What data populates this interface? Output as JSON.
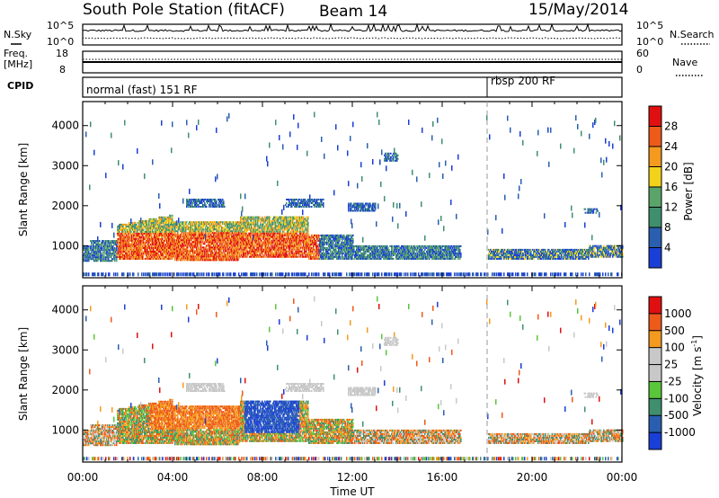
{
  "header": {
    "station": "South Pole Station (fitACF)",
    "beam": "Beam 14",
    "date": "15/May/2014"
  },
  "panels": {
    "nsky": {
      "label": "N.Sky",
      "ticks": [
        "10^5",
        "10^0"
      ]
    },
    "nsearch": {
      "label": "N.Search",
      "ticks": [
        "10^5",
        "10^0"
      ]
    },
    "freq": {
      "label_top": "Freq.",
      "label_bottom": "[MHz]",
      "ticks": [
        "18",
        "8"
      ]
    },
    "nave": {
      "label": "Nave",
      "ticks": [
        "60",
        "0"
      ]
    },
    "cpid": {
      "label": "CPID",
      "segments": [
        "normal (fast) 151 RF",
        "rbsp 200 RF"
      ]
    }
  },
  "colors": {
    "power": [
      "#1a3fd6",
      "#2a5fb0",
      "#3f8f6f",
      "#5aa46a",
      "#f2d21a",
      "#f49a1e",
      "#ee5a1a",
      "#e01010"
    ],
    "velocity": [
      "#e01010",
      "#ee5a1a",
      "#f49a1e",
      "#c8c8c8",
      "#c8c8c8",
      "#5ac63a",
      "#3f8f6f",
      "#2a5fb0",
      "#1a3fd6"
    ],
    "scatter_gray": "#c8c8c8"
  },
  "chart_data": [
    {
      "type": "heatmap",
      "title": "Power",
      "ylabel": "Slant Range [km]",
      "xlabel": "Time UT",
      "x_ticks": [
        "00:00",
        "04:00",
        "08:00",
        "12:00",
        "16:00",
        "20:00",
        "00:00"
      ],
      "y_ticks": [
        1000,
        2000,
        3000,
        4000
      ],
      "ylim": [
        200,
        4600
      ],
      "xlim_hours": [
        0,
        24
      ],
      "colorbar": {
        "label": "Power [dB]",
        "ticks": [
          4,
          8,
          12,
          16,
          20,
          24,
          28
        ]
      }
    },
    {
      "type": "heatmap",
      "title": "Velocity",
      "ylabel": "Slant Range [km]",
      "xlabel": "Time UT",
      "x_ticks": [
        "00:00",
        "04:00",
        "08:00",
        "12:00",
        "16:00",
        "20:00",
        "00:00"
      ],
      "y_ticks": [
        1000,
        2000,
        3000,
        4000
      ],
      "ylim": [
        200,
        4600
      ],
      "xlim_hours": [
        0,
        24
      ],
      "colorbar": {
        "label": "Velocity [m s-1]",
        "ticks": [
          1000,
          500,
          100,
          25,
          -25,
          -100,
          -500,
          -1000
        ]
      }
    }
  ],
  "axes": {
    "time_label": "Time UT",
    "slant_range_label": "Slant Range [km]"
  },
  "colorbar_labels": {
    "power": "Power [dB]",
    "velocity_main": "Velocity [m s",
    "velocity_exp": "-1",
    "velocity_close": "]"
  }
}
